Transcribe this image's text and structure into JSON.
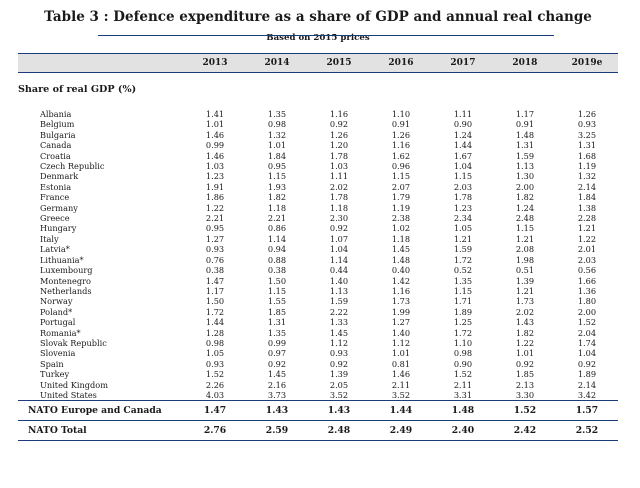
{
  "title": "Table 3 : Defence expenditure as a share of GDP and annual real change",
  "subtitle": "Based on 2015 prices",
  "years": [
    "2013",
    "2014",
    "2015",
    "2016",
    "2017",
    "2018",
    "2019e"
  ],
  "section_label": "Share of real GDP (%)",
  "rows": [
    {
      "name": "Albania",
      "values": [
        "1.41",
        "1.35",
        "1.16",
        "1.10",
        "1.11",
        "1.17",
        "1.26"
      ]
    },
    {
      "name": "Belgium",
      "values": [
        "1.01",
        "0.98",
        "0.92",
        "0.91",
        "0.90",
        "0.91",
        "0.93"
      ]
    },
    {
      "name": "Bulgaria",
      "values": [
        "1.46",
        "1.32",
        "1.26",
        "1.26",
        "1.24",
        "1.48",
        "3.25"
      ]
    },
    {
      "name": "Canada",
      "values": [
        "0.99",
        "1.01",
        "1.20",
        "1.16",
        "1.44",
        "1.31",
        "1.31"
      ]
    },
    {
      "name": "Croatia",
      "values": [
        "1.46",
        "1.84",
        "1.78",
        "1.62",
        "1.67",
        "1.59",
        "1.68"
      ]
    },
    {
      "name": "Czech Republic",
      "values": [
        "1.03",
        "0.95",
        "1.03",
        "0.96",
        "1.04",
        "1.13",
        "1.19"
      ]
    },
    {
      "name": "Denmark",
      "values": [
        "1.23",
        "1.15",
        "1.11",
        "1.15",
        "1.15",
        "1.30",
        "1.32"
      ]
    },
    {
      "name": "Estonia",
      "values": [
        "1.91",
        "1.93",
        "2.02",
        "2.07",
        "2.03",
        "2.00",
        "2.14"
      ]
    },
    {
      "name": "France",
      "values": [
        "1.86",
        "1.82",
        "1.78",
        "1.79",
        "1.78",
        "1.82",
        "1.84"
      ]
    },
    {
      "name": "Germany",
      "values": [
        "1.22",
        "1.18",
        "1.18",
        "1.19",
        "1.23",
        "1.24",
        "1.38"
      ]
    },
    {
      "name": "Greece",
      "values": [
        "2.21",
        "2.21",
        "2.30",
        "2.38",
        "2.34",
        "2.48",
        "2.28"
      ]
    },
    {
      "name": "Hungary",
      "values": [
        "0.95",
        "0.86",
        "0.92",
        "1.02",
        "1.05",
        "1.15",
        "1.21"
      ]
    },
    {
      "name": "Italy",
      "values": [
        "1.27",
        "1.14",
        "1.07",
        "1.18",
        "1.21",
        "1.21",
        "1.22"
      ]
    },
    {
      "name": "Latvia*",
      "values": [
        "0.93",
        "0.94",
        "1.04",
        "1.45",
        "1.59",
        "2.08",
        "2.01"
      ]
    },
    {
      "name": "Lithuania*",
      "values": [
        "0.76",
        "0.88",
        "1.14",
        "1.48",
        "1.72",
        "1.98",
        "2.03"
      ]
    },
    {
      "name": "Luxembourg",
      "values": [
        "0.38",
        "0.38",
        "0.44",
        "0.40",
        "0.52",
        "0.51",
        "0.56"
      ]
    },
    {
      "name": "Montenegro",
      "values": [
        "1.47",
        "1.50",
        "1.40",
        "1.42",
        "1.35",
        "1.39",
        "1.66"
      ]
    },
    {
      "name": "Netherlands",
      "values": [
        "1.17",
        "1.15",
        "1.13",
        "1.16",
        "1.15",
        "1.21",
        "1.36"
      ]
    },
    {
      "name": "Norway",
      "values": [
        "1.50",
        "1.55",
        "1.59",
        "1.73",
        "1.71",
        "1.73",
        "1.80"
      ]
    },
    {
      "name": "Poland*",
      "values": [
        "1.72",
        "1.85",
        "2.22",
        "1.99",
        "1.89",
        "2.02",
        "2.00"
      ]
    },
    {
      "name": "Portugal",
      "values": [
        "1.44",
        "1.31",
        "1.33",
        "1.27",
        "1.25",
        "1.43",
        "1.52"
      ]
    },
    {
      "name": "Romania*",
      "values": [
        "1.28",
        "1.35",
        "1.45",
        "1.40",
        "1.72",
        "1.82",
        "2.04"
      ]
    },
    {
      "name": "Slovak Republic",
      "values": [
        "0.98",
        "0.99",
        "1.12",
        "1.12",
        "1.10",
        "1.22",
        "1.74"
      ]
    },
    {
      "name": "Slovenia",
      "values": [
        "1.05",
        "0.97",
        "0.93",
        "1.01",
        "0.98",
        "1.01",
        "1.04"
      ]
    },
    {
      "name": "Spain",
      "values": [
        "0.93",
        "0.92",
        "0.92",
        "0.81",
        "0.90",
        "0.92",
        "0.92"
      ]
    },
    {
      "name": "Turkey",
      "values": [
        "1.52",
        "1.45",
        "1.39",
        "1.46",
        "1.52",
        "1.85",
        "1.89"
      ]
    },
    {
      "name": "United Kingdom",
      "values": [
        "2.26",
        "2.16",
        "2.05",
        "2.11",
        "2.11",
        "2.13",
        "2.14"
      ]
    },
    {
      "name": "United States",
      "values": [
        "4.03",
        "3.73",
        "3.52",
        "3.52",
        "3.31",
        "3.30",
        "3.42"
      ]
    }
  ],
  "aggregates": [
    {
      "name": "NATO Europe and Canada",
      "values": [
        "1.47",
        "1.43",
        "1.43",
        "1.44",
        "1.48",
        "1.52",
        "1.57"
      ]
    },
    {
      "name": "NATO Total",
      "values": [
        "2.76",
        "2.59",
        "2.48",
        "2.49",
        "2.40",
        "2.42",
        "2.52"
      ]
    }
  ]
}
